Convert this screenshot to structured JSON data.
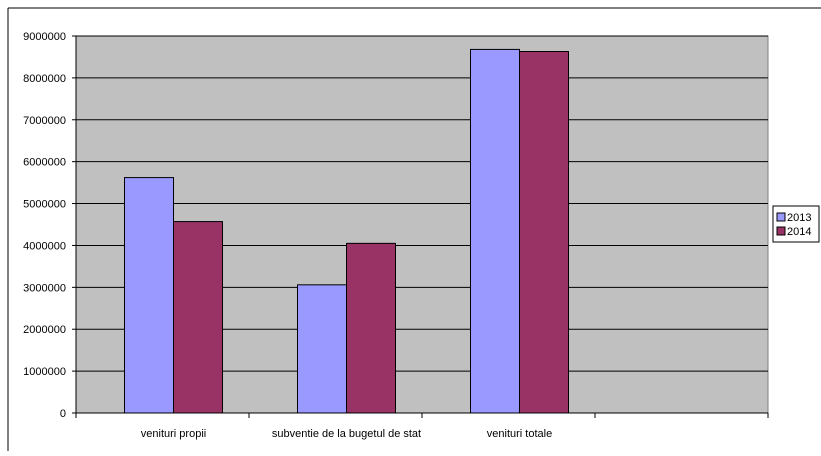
{
  "chart_data": {
    "type": "bar",
    "title": "",
    "xlabel": "",
    "ylabel": "",
    "categories": [
      "venituri propii",
      "subventie de la bugetul de stat",
      "venituri totale",
      ""
    ],
    "series": [
      {
        "name": "2013",
        "values": [
          5620000,
          3060000,
          8680000,
          null
        ],
        "color": "#9999ff"
      },
      {
        "name": "2014",
        "values": [
          4570000,
          4050000,
          8630000,
          null
        ],
        "color": "#993366"
      }
    ],
    "ylim": [
      0,
      9000000
    ],
    "yticks": [
      "0",
      "1000000",
      "2000000",
      "3000000",
      "4000000",
      "5000000",
      "6000000",
      "7000000",
      "8000000",
      "9000000"
    ],
    "grid": "horizontal",
    "legend_position": "right",
    "plot_background": "#c0c0c0",
    "gridline_color": "#000000"
  }
}
